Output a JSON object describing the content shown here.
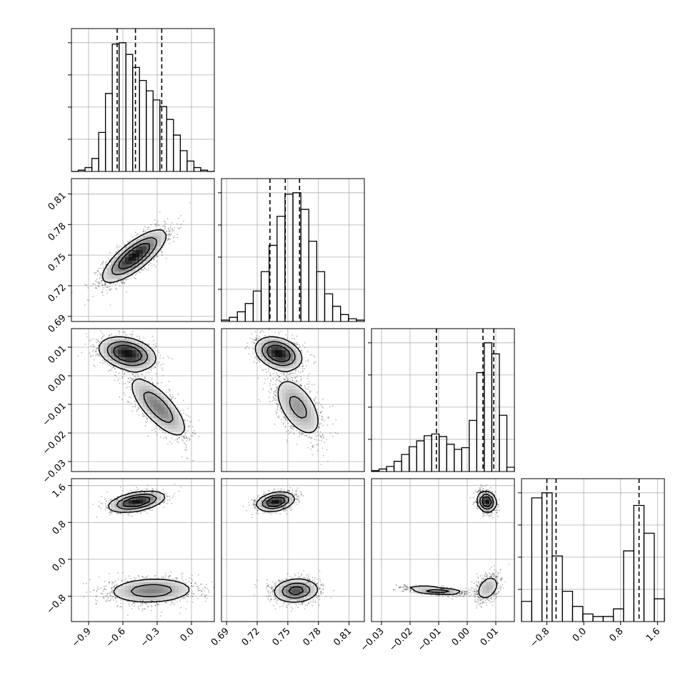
{
  "chart_data": {
    "type": "corner",
    "grid": true,
    "parameters": [
      {
        "range": [
          -1.05,
          0.2
        ],
        "ticks": [
          -0.9,
          -0.6,
          -0.3,
          0.0
        ],
        "tick_labels": [
          "−0.9",
          "−0.6",
          "−0.3",
          "0.0"
        ],
        "quantiles": [
          -0.65,
          -0.49,
          -0.26
        ]
      },
      {
        "range": [
          0.685,
          0.825
        ],
        "ticks": [
          0.69,
          0.72,
          0.75,
          0.78,
          0.81
        ],
        "tick_labels": [
          "0.69",
          "0.72",
          "0.75",
          "0.78",
          "0.81"
        ],
        "quantiles": [
          0.7325,
          0.7475,
          0.7615
        ]
      },
      {
        "range": [
          -0.0335,
          0.0165
        ],
        "ticks": [
          -0.03,
          -0.02,
          -0.01,
          0.0,
          0.01
        ],
        "tick_labels": [
          "−0.03",
          "−0.02",
          "−0.01",
          "0.00",
          "0.01"
        ],
        "quantiles": [
          -0.0108,
          0.0055,
          0.0093
        ]
      },
      {
        "range": [
          -1.35,
          1.75
        ],
        "ticks": [
          -0.8,
          0.0,
          0.8,
          1.6
        ],
        "tick_labels": [
          "−0.8",
          "0.0",
          "0.8",
          "1.6"
        ],
        "quantiles": [
          -0.8,
          -0.6,
          1.2
        ]
      }
    ],
    "histograms": [
      {
        "param": 0,
        "values": [
          0,
          1,
          3,
          10,
          30,
          60,
          98,
          99,
          90,
          80,
          70,
          62,
          55,
          50,
          40,
          28,
          16,
          8,
          3,
          1,
          0
        ]
      },
      {
        "param": 1,
        "values": [
          1,
          3,
          7,
          13,
          22,
          36,
          55,
          76,
          92,
          93,
          81,
          58,
          36,
          20,
          11,
          5,
          2,
          1
        ]
      },
      {
        "param": 2,
        "values": [
          1,
          3,
          6,
          12,
          20,
          29,
          36,
          42,
          44,
          41,
          32,
          26,
          28,
          60,
          116,
          151,
          138,
          66,
          5
        ]
      },
      {
        "param": 3,
        "values": [
          8,
          49,
          51,
          26,
          12,
          6,
          3,
          2,
          2,
          5,
          28,
          46,
          35,
          9
        ]
      }
    ],
    "pairs": [
      {
        "x": 1,
        "y": 0,
        "modes": [
          {
            "center": [
              -0.5,
              0.749
            ],
            "sd": [
              0.135,
              0.0125
            ],
            "rho": 0.78,
            "weight": 1.0
          }
        ]
      },
      {
        "x": 2,
        "y": 0,
        "modes": [
          {
            "center": [
              -0.56,
              0.0078
            ],
            "sd": [
              0.12,
              0.0028
            ],
            "rho": -0.3,
            "weight": 0.55
          },
          {
            "center": [
              -0.29,
              -0.011
            ],
            "sd": [
              0.13,
              0.0055
            ],
            "rho": -0.75,
            "weight": 0.45
          }
        ]
      },
      {
        "x": 2,
        "y": 1,
        "modes": [
          {
            "center": [
              0.741,
              0.0078
            ],
            "sd": [
              0.011,
              0.0028
            ],
            "rho": -0.3,
            "weight": 0.55
          },
          {
            "center": [
              0.76,
              -0.011
            ],
            "sd": [
              0.012,
              0.0055
            ],
            "rho": -0.55,
            "weight": 0.45
          }
        ]
      },
      {
        "x": 3,
        "y": 0,
        "modes": [
          {
            "center": [
              -0.48,
              1.25
            ],
            "sd": [
              0.12,
              0.11
            ],
            "rho": 0.45,
            "weight": 0.45
          },
          {
            "center": [
              -0.35,
              -0.68
            ],
            "sd": [
              0.19,
              0.14
            ],
            "rho": 0.1,
            "weight": 0.55
          }
        ]
      },
      {
        "x": 3,
        "y": 1,
        "modes": [
          {
            "center": [
              0.738,
              1.25
            ],
            "sd": [
              0.009,
              0.1
            ],
            "rho": 0.3,
            "weight": 0.45
          },
          {
            "center": [
              0.758,
              -0.68
            ],
            "sd": [
              0.011,
              0.13
            ],
            "rho": 0.1,
            "weight": 0.55
          }
        ]
      },
      {
        "x": 3,
        "y": 2,
        "modes": [
          {
            "center": [
              0.0068,
              1.25
            ],
            "sd": [
              0.0016,
              0.11
            ],
            "rho": -0.1,
            "weight": 0.45
          },
          {
            "center": [
              -0.011,
              -0.68
            ],
            "sd": [
              0.0055,
              0.05
            ],
            "rho": -0.55,
            "weight": 0.3
          },
          {
            "center": [
              0.0072,
              -0.62
            ],
            "sd": [
              0.0022,
              0.15
            ],
            "rho": 0.35,
            "weight": 0.25
          }
        ]
      }
    ]
  }
}
